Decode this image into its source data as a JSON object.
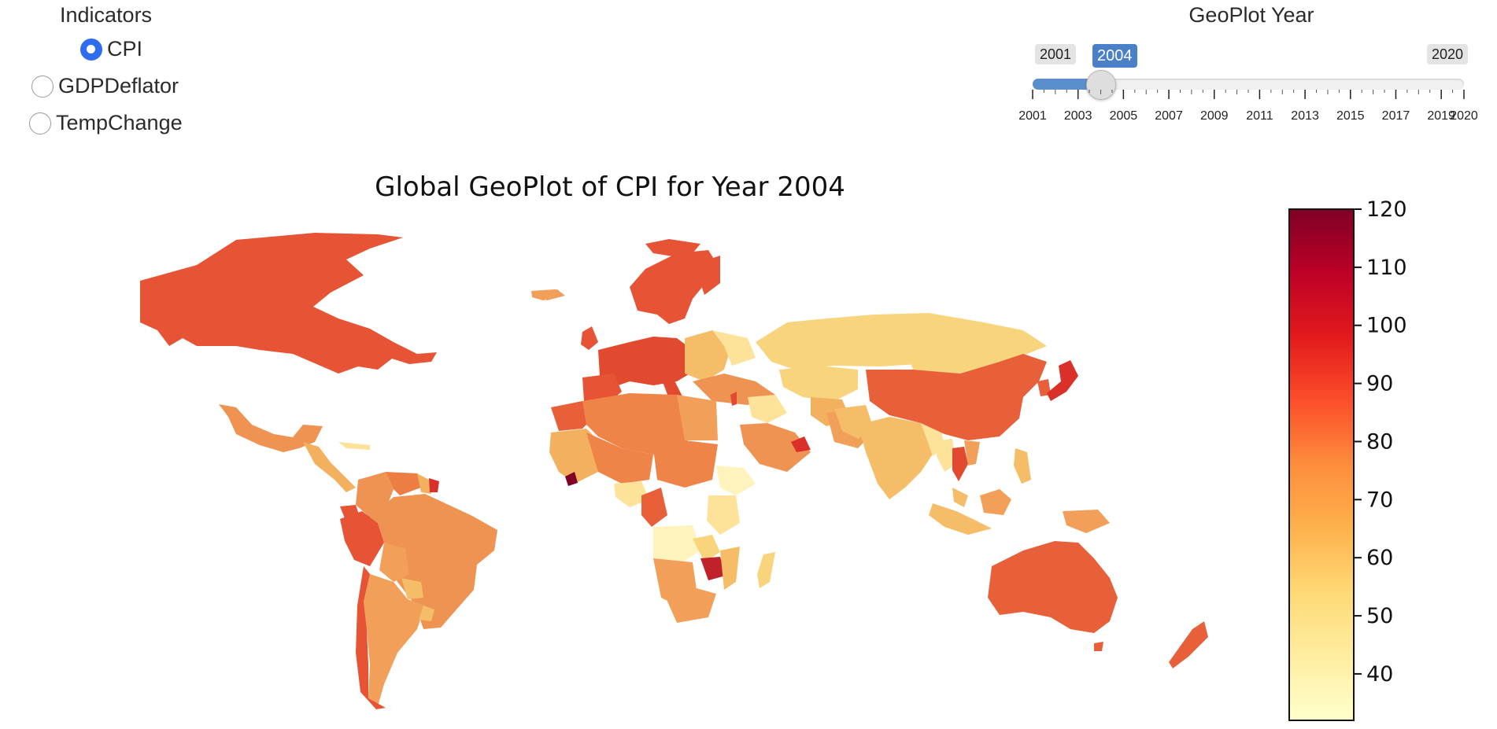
{
  "indicators": {
    "title": "Indicators",
    "options": [
      {
        "label": "CPI",
        "checked": true
      },
      {
        "label": "GDPDeflator",
        "checked": false
      },
      {
        "label": "TempChange",
        "checked": false
      }
    ]
  },
  "slider": {
    "title": "GeoPlot Year",
    "min": 2001,
    "max": 2020,
    "value": 2004,
    "min_label": "2001",
    "max_label": "2020",
    "value_label": "2004",
    "tick_labels": [
      "2001",
      "2003",
      "2005",
      "2007",
      "2009",
      "2011",
      "2013",
      "2015",
      "2017",
      "2019",
      "2020"
    ],
    "accent": "#4a80c8"
  },
  "map": {
    "title": "Global GeoPlot of CPI for Year 2004",
    "colorbar": {
      "min": 32,
      "max": 120,
      "ticks": [
        "120",
        "110",
        "100",
        "90",
        "80",
        "70",
        "60",
        "50",
        "40"
      ],
      "colormap": "YlOrRd",
      "colors": [
        "#ffffcc",
        "#ffeda0",
        "#fed976",
        "#feb24c",
        "#fd8d3c",
        "#fc4e2a",
        "#e31a1c",
        "#bd0026",
        "#800026"
      ]
    }
  }
}
